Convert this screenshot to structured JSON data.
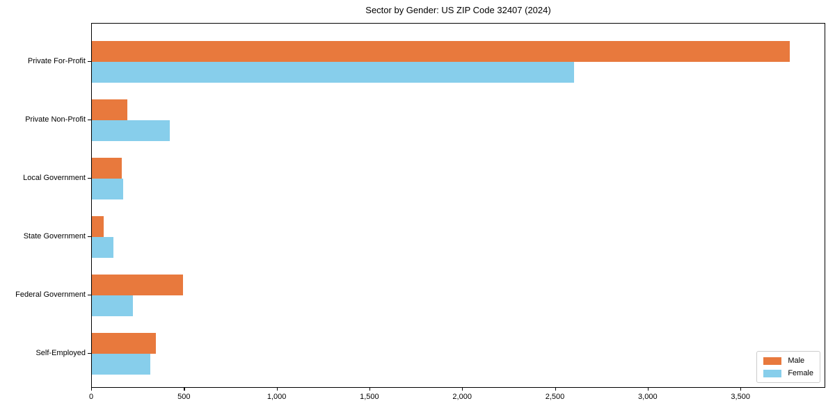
{
  "chart_data": {
    "type": "bar",
    "orientation": "horizontal",
    "title": "Sector by Gender: US ZIP Code 32407 (2024)",
    "categories": [
      "Private For-Profit",
      "Private Non-Profit",
      "Local Government",
      "State Government",
      "Federal Government",
      "Self-Employed"
    ],
    "series": [
      {
        "name": "Male",
        "color": "#e8793d",
        "values": [
          3760,
          190,
          160,
          65,
          490,
          345
        ]
      },
      {
        "name": "Female",
        "color": "#87ceeb",
        "values": [
          2600,
          420,
          170,
          115,
          220,
          315
        ]
      }
    ],
    "xlabel": "",
    "ylabel": "",
    "xlim": [
      0,
      3957
    ],
    "xticks": [
      0,
      500,
      1000,
      1500,
      2000,
      2500,
      3000,
      3500
    ],
    "xticklabels": [
      "0",
      "500",
      "1,000",
      "1,500",
      "2,000",
      "2,500",
      "3,000",
      "3,500"
    ],
    "grid": false,
    "legend": {
      "position": "lower right",
      "entries": [
        "Male",
        "Female"
      ]
    },
    "colors": {
      "frame": "#000000",
      "background": "#ffffff",
      "legend_border": "#cccccc"
    }
  }
}
